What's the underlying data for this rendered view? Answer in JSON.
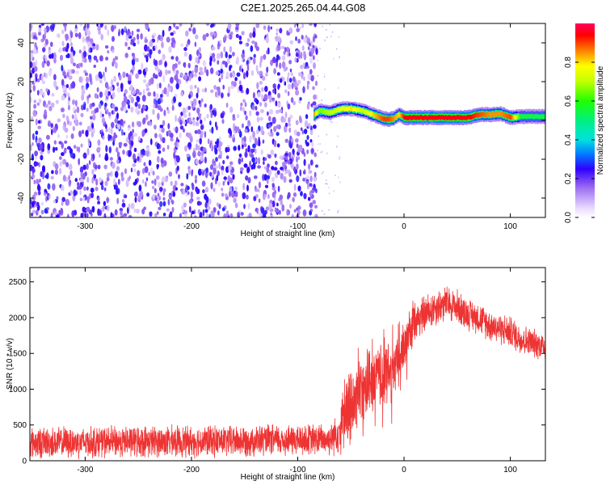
{
  "title": "C2E1.2025.265.04.44.G08",
  "chart_data": [
    {
      "type": "heatmap",
      "xlabel": "Height of straight line (km)",
      "ylabel": "Frequency (Hz)",
      "xlim": [
        -352,
        133
      ],
      "ylim": [
        -50,
        50
      ],
      "xticks": [
        -300,
        -200,
        -100,
        0,
        100
      ],
      "yticks": [
        -40,
        -20,
        0,
        20,
        40
      ],
      "colorbar": {
        "label": "Normalized spectral amplitude",
        "range": [
          0,
          1
        ],
        "ticks": [
          0.0,
          0.2,
          0.4,
          0.6,
          0.8
        ],
        "tick_labels": [
          "0.0",
          "0.2",
          "0.4",
          "0.6",
          "0.8"
        ]
      },
      "noise_region": {
        "x_range": [
          -352,
          -82
        ],
        "amplitude_range": [
          0.05,
          0.2
        ]
      },
      "signal_ridge": {
        "x": [
          -85,
          -80,
          -70,
          -60,
          -50,
          -40,
          -30,
          -20,
          -15,
          -10,
          -5,
          0,
          10,
          20,
          40,
          60,
          70,
          80,
          90,
          100,
          110,
          133
        ],
        "frequency": [
          3,
          5,
          4,
          6,
          6,
          5,
          3,
          1,
          0.5,
          1,
          3,
          1.5,
          1.5,
          1.5,
          1.5,
          1.5,
          3,
          3,
          3.5,
          1.5,
          2,
          2
        ],
        "amplitude": [
          0.85,
          0.65,
          0.7,
          0.75,
          0.8,
          0.7,
          0.8,
          0.9,
          0.9,
          0.85,
          0.8,
          0.95,
          0.95,
          0.95,
          0.95,
          0.95,
          0.9,
          0.85,
          0.85,
          0.9,
          0.55,
          0.55
        ]
      }
    },
    {
      "type": "line",
      "xlabel": "Height of straight line (km)",
      "ylabel": "SNR (10 * v/v)",
      "xlim": [
        -352,
        133
      ],
      "ylim": [
        0,
        2700
      ],
      "xticks": [
        -300,
        -200,
        -100,
        0,
        100
      ],
      "yticks": [
        0,
        500,
        1000,
        1500,
        2000,
        2500
      ],
      "series": [
        {
          "color": "#ee3333",
          "envelope": {
            "x": [
              -352,
              -300,
              -250,
              -200,
              -150,
              -100,
              -70,
              -60,
              -50,
              -40,
              -30,
              -20,
              -10,
              0,
              10,
              20,
              30,
              40,
              50,
              60,
              70,
              80,
              90,
              100,
              110,
              120,
              133
            ],
            "mean": [
              250,
              260,
              270,
              270,
              280,
              290,
              300,
              450,
              800,
              1000,
              1100,
              1200,
              1250,
              1600,
              1950,
              2050,
              2150,
              2200,
              2150,
              2050,
              2000,
              1900,
              1850,
              1800,
              1700,
              1650,
              1600
            ],
            "spread": [
              250,
              250,
              250,
              250,
              250,
              250,
              250,
              400,
              600,
              500,
              500,
              550,
              500,
              400,
              350,
              300,
              300,
              280,
              280,
              250,
              250,
              250,
              250,
              250,
              250,
              230,
              230
            ]
          }
        }
      ]
    }
  ]
}
